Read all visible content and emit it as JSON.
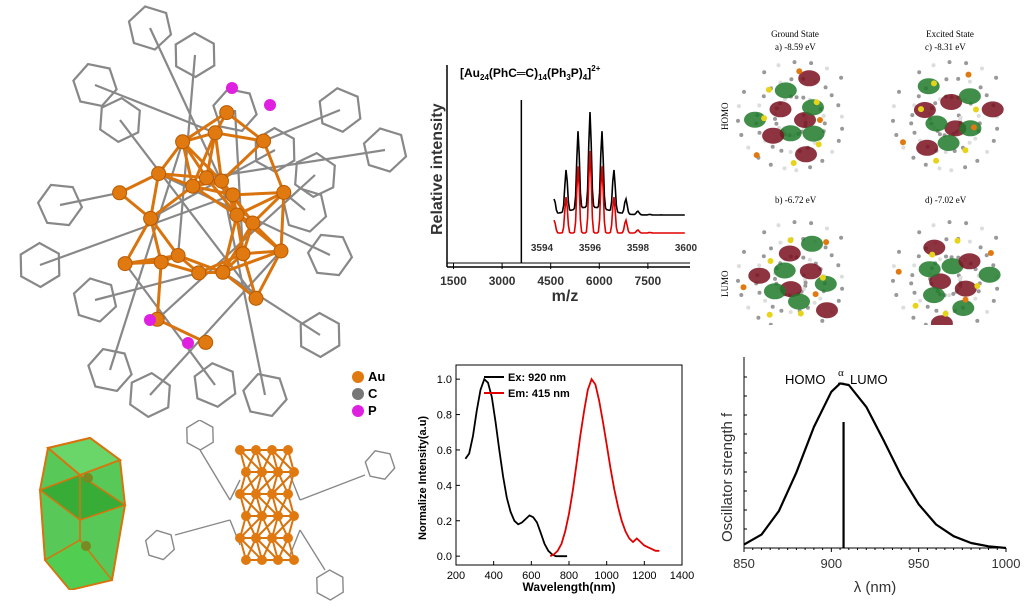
{
  "legend": {
    "items": [
      {
        "label": "Au",
        "color": "#e07a10"
      },
      {
        "label": "C",
        "color": "#777777"
      },
      {
        "label": "P",
        "color": "#e020e0"
      }
    ]
  },
  "ms": {
    "formula_parts": [
      "[Au",
      "24",
      "(PhC",
      "═",
      "C)",
      "14",
      "(Ph",
      "3",
      "P)",
      "4",
      "]",
      "2+"
    ],
    "ylabel": "Relative intensity",
    "xlabel": "m/z",
    "main_ticks": [
      "1500",
      "3000",
      "4500",
      "6000",
      "7500"
    ],
    "inset_ticks": [
      "3594",
      "3596",
      "3598",
      "3600"
    ],
    "colors": {
      "experimental": "#000000",
      "simulated": "#e00000"
    }
  },
  "orbitals": {
    "col_headers": [
      "Ground State",
      "Excited State"
    ],
    "row_labels": [
      "HOMO",
      "LUMO"
    ],
    "panels": [
      {
        "label": "a)  -8.59 eV"
      },
      {
        "label": "c)  -8.31 eV"
      },
      {
        "label": "b)  -6.72 eV"
      },
      {
        "label": "d)  -7.02 eV"
      }
    ]
  },
  "spectra": {
    "ylabel": "Normalize Intensity(a.u)",
    "xlabel": "Wavelength(nm)",
    "xticks": [
      "200",
      "400",
      "600",
      "800",
      "1000",
      "1200",
      "1400"
    ],
    "yticks": [
      "0.0",
      "0.2",
      "0.4",
      "0.6",
      "0.8",
      "1.0"
    ],
    "legend": [
      "Ex: 920 nm",
      "Em: 415 nm"
    ]
  },
  "osc": {
    "ylabel": "Oscillator strength f",
    "annotation_left": "HOMO",
    "annotation_alpha": "α",
    "annotation_right": "LUMO",
    "annotation_dash": "–",
    "xlabel": "λ (nm)",
    "xticks": [
      "850",
      "900",
      "950",
      "1000"
    ]
  },
  "chart_data": [
    {
      "type": "line",
      "title": "",
      "xlabel": "Wavelength(nm)",
      "ylabel": "Normalize Intensity(a.u)",
      "xlim": [
        200,
        1400
      ],
      "ylim": [
        -0.05,
        1.08
      ],
      "series": [
        {
          "name": "Ex: 920 nm",
          "color": "#000000",
          "x": [
            250,
            270,
            290,
            310,
            330,
            350,
            370,
            390,
            410,
            430,
            450,
            470,
            490,
            510,
            530,
            550,
            570,
            590,
            610,
            630,
            650,
            670,
            690,
            710,
            730,
            750,
            770,
            790
          ],
          "y": [
            0.55,
            0.58,
            0.68,
            0.82,
            0.94,
            1.0,
            0.98,
            0.9,
            0.76,
            0.6,
            0.45,
            0.33,
            0.25,
            0.2,
            0.18,
            0.19,
            0.21,
            0.23,
            0.22,
            0.19,
            0.13,
            0.07,
            0.03,
            0.01,
            0.0,
            0.0,
            0.0,
            0.0
          ]
        },
        {
          "name": "Em: 415 nm",
          "color": "#e00000",
          "x": [
            700,
            720,
            740,
            760,
            780,
            800,
            820,
            840,
            860,
            880,
            900,
            920,
            940,
            960,
            980,
            1000,
            1020,
            1040,
            1060,
            1080,
            1100,
            1120,
            1140,
            1160,
            1180,
            1200,
            1220,
            1240,
            1260,
            1280
          ],
          "y": [
            0.0,
            0.01,
            0.03,
            0.07,
            0.14,
            0.24,
            0.37,
            0.52,
            0.68,
            0.82,
            0.94,
            1.0,
            0.97,
            0.88,
            0.76,
            0.63,
            0.5,
            0.38,
            0.28,
            0.2,
            0.14,
            0.1,
            0.08,
            0.1,
            0.08,
            0.06,
            0.05,
            0.04,
            0.03,
            0.03
          ]
        }
      ]
    },
    {
      "type": "line",
      "title": "",
      "xlabel": "λ (nm)",
      "ylabel": "Oscillator strength f",
      "xlim": [
        850,
        1000
      ],
      "series": [
        {
          "name": "",
          "color": "#000000",
          "x": [
            850,
            860,
            870,
            880,
            890,
            900,
            905,
            910,
            920,
            930,
            940,
            950,
            960,
            970,
            980,
            990,
            1000
          ],
          "y": [
            0.02,
            0.08,
            0.22,
            0.45,
            0.72,
            0.93,
            0.98,
            0.97,
            0.84,
            0.64,
            0.43,
            0.26,
            0.14,
            0.07,
            0.03,
            0.01,
            0.0
          ]
        },
        {
          "name": "",
          "type": "stick",
          "x": [
            907
          ],
          "y": [
            0.75
          ]
        }
      ]
    },
    {
      "type": "line",
      "title": "[Au24(PhC═C)14(Ph3P)4]2+",
      "xlabel": "m/z",
      "ylabel": "Relative intensity",
      "xlim": [
        1300,
        8800
      ],
      "series": [
        {
          "name": "",
          "type": "stick",
          "x": [
            3594.6
          ],
          "y": [
            1.0
          ]
        }
      ]
    }
  ]
}
